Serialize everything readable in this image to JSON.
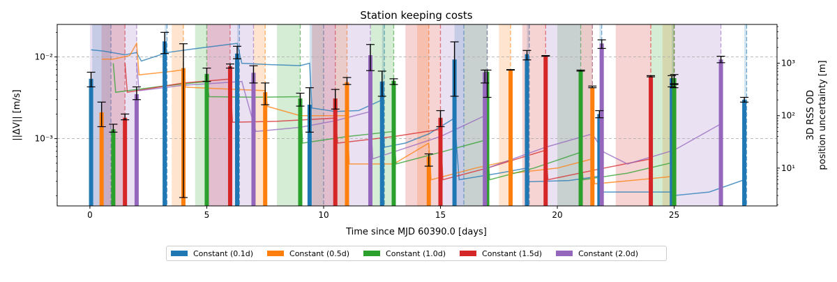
{
  "chart_data": {
    "type": "bar",
    "title": "Station keeping costs",
    "xlabel": "Time since MJD 60390.0 [days]",
    "ylabel_left": "||ΔV|| [m/s]",
    "ylabel_right_line1": "3D RSS OD",
    "ylabel_right_line2": "position uncertainty [m]",
    "x_range": [
      -1.4,
      29.4
    ],
    "y_left_range": [
      0.00015,
      0.025
    ],
    "y_left_scale": "log",
    "y_right_range": [
      1.9,
      5500
    ],
    "y_right_scale": "log",
    "x_ticks": [
      0,
      5,
      10,
      15,
      20,
      25
    ],
    "y_left_ticks": [
      {
        "v": 0.001,
        "label": "10⁻³"
      },
      {
        "v": 0.01,
        "label": "10⁻²"
      }
    ],
    "y_right_ticks": [
      {
        "v": 10,
        "label": "10¹"
      },
      {
        "v": 100,
        "label": "10²"
      },
      {
        "v": 1000,
        "label": "10³"
      }
    ],
    "grid": "horizontal dashed",
    "legend_position": "bottom-center",
    "series": [
      {
        "name": "Constant (0.1d)",
        "color": "#1f77b4",
        "bars": [
          [
            0.05,
            0.0054,
            0.0043,
            0.0065
          ],
          [
            3.2,
            0.0155,
            0.011,
            0.02
          ],
          [
            6.3,
            0.011,
            0.0095,
            0.0135
          ],
          [
            9.4,
            0.0026,
            0.0012,
            0.0042
          ],
          [
            12.5,
            0.005,
            0.0033,
            0.0067
          ],
          [
            15.6,
            0.0093,
            0.0033,
            0.0153
          ],
          [
            18.7,
            0.0108,
            0.0092,
            0.012
          ],
          [
            21.8,
            0.002,
            0.0018,
            0.0022
          ],
          [
            24.9,
            0.0055,
            0.0043,
            0.0059
          ],
          [
            28.0,
            0.003,
            0.0028,
            0.0032
          ]
        ],
        "windows": [
          [
            0.1,
            0.9
          ],
          [
            3.2,
            3.3
          ],
          [
            6.3,
            6.4
          ],
          [
            9.4,
            10.0
          ],
          [
            12.5,
            12.6
          ],
          [
            15.6,
            16.0
          ],
          [
            18.7,
            18.8
          ],
          [
            21.8,
            21.9
          ],
          [
            24.9,
            25.0
          ],
          [
            28.0,
            28.1
          ]
        ],
        "od_curve": [
          [
            0.05,
            1800
          ],
          [
            0.6,
            1700
          ],
          [
            1.5,
            1450
          ],
          [
            2.0,
            1600
          ],
          [
            2.2,
            1100
          ],
          [
            3.3,
            1600
          ],
          [
            4.5,
            1900
          ],
          [
            6.3,
            2400
          ],
          [
            6.5,
            1000
          ],
          [
            7.5,
            950
          ],
          [
            9.0,
            900
          ],
          [
            9.4,
            1000
          ],
          [
            9.5,
            140
          ],
          [
            10.5,
            120
          ],
          [
            11.5,
            125
          ],
          [
            12.5,
            200
          ],
          [
            12.6,
            25
          ],
          [
            13.5,
            30
          ],
          [
            14.5,
            45
          ],
          [
            15.6,
            90
          ],
          [
            15.8,
            6
          ],
          [
            17.5,
            8
          ],
          [
            18.7,
            10
          ],
          [
            18.8,
            5.5
          ],
          [
            20.5,
            5.8
          ],
          [
            21.8,
            7
          ],
          [
            21.9,
            3.5
          ],
          [
            23.5,
            3.5
          ],
          [
            24.9,
            3.5
          ],
          [
            25.0,
            3.0
          ],
          [
            26.5,
            3.5
          ],
          [
            28.0,
            6
          ]
        ]
      },
      {
        "name": "Constant (0.5d)",
        "color": "#ff7f0e",
        "bars": [
          [
            0.5,
            0.0021,
            0.0014,
            0.0028
          ],
          [
            4.0,
            0.0073,
            0.00019,
            0.0145
          ],
          [
            7.5,
            0.0037,
            0.0026,
            0.0048
          ],
          [
            11.0,
            0.0049,
            0.0046,
            0.0056
          ],
          [
            14.5,
            0.0006,
            0.00046,
            0.00065
          ],
          [
            18.0,
            0.0069,
            0.0069,
            0.007
          ],
          [
            21.5,
            0.0042,
            0.0042,
            0.0044
          ],
          [
            25.0,
            0.0044,
            0.0042,
            0.0047
          ]
        ],
        "windows": [
          [
            3.5,
            4.0
          ],
          [
            7.0,
            7.5
          ],
          [
            10.5,
            11.0
          ],
          [
            14.0,
            14.5
          ],
          [
            17.5,
            18.0
          ],
          [
            21.0,
            21.5
          ],
          [
            24.5,
            25.0
          ]
        ],
        "od_curve": [
          [
            0.5,
            1200
          ],
          [
            1.0,
            1200
          ],
          [
            1.7,
            1400
          ],
          [
            2.0,
            2400
          ],
          [
            2.1,
            600
          ],
          [
            3.5,
            700
          ],
          [
            4.0,
            750
          ],
          [
            4.1,
            350
          ],
          [
            6.0,
            320
          ],
          [
            7.5,
            300
          ],
          [
            7.6,
            150
          ],
          [
            9.0,
            100
          ],
          [
            11.0,
            100
          ],
          [
            11.1,
            12
          ],
          [
            13.0,
            12
          ],
          [
            14.5,
            30
          ],
          [
            14.6,
            6
          ],
          [
            16.5,
            10
          ],
          [
            18.0,
            14
          ],
          [
            18.1,
            8
          ],
          [
            20.0,
            10
          ],
          [
            21.5,
            15
          ],
          [
            21.6,
            5
          ],
          [
            23.5,
            6
          ],
          [
            25.0,
            7
          ]
        ]
      },
      {
        "name": "Constant (1.0d)",
        "color": "#2ca02c",
        "bars": [
          [
            1.0,
            0.0013,
            0.0012,
            0.0015
          ],
          [
            5.0,
            0.0062,
            0.005,
            0.0073
          ],
          [
            9.0,
            0.0031,
            0.0025,
            0.0036
          ],
          [
            13.0,
            0.0051,
            0.0046,
            0.0054
          ],
          [
            17.0,
            0.0066,
            0.0032,
            0.0069
          ],
          [
            21.0,
            0.0068,
            0.0067,
            0.0069
          ],
          [
            25.0,
            0.0055,
            0.0046,
            0.0061
          ]
        ],
        "windows": [
          [
            4.5,
            5.0
          ],
          [
            8.0,
            9.0
          ],
          [
            12.0,
            13.0
          ],
          [
            16.0,
            17.0
          ],
          [
            20.0,
            21.0
          ],
          [
            24.0,
            25.0
          ]
        ],
        "od_curve": [
          [
            1.0,
            1000
          ],
          [
            1.1,
            280
          ],
          [
            3.0,
            360
          ],
          [
            5.0,
            450
          ],
          [
            5.1,
            230
          ],
          [
            7.0,
            225
          ],
          [
            9.0,
            230
          ],
          [
            9.1,
            30
          ],
          [
            11.0,
            40
          ],
          [
            13.0,
            50
          ],
          [
            13.1,
            12
          ],
          [
            15.0,
            20
          ],
          [
            17.0,
            35
          ],
          [
            17.1,
            6
          ],
          [
            19.0,
            10
          ],
          [
            21.0,
            20
          ],
          [
            21.1,
            6
          ],
          [
            23.0,
            8
          ],
          [
            25.0,
            13
          ]
        ]
      },
      {
        "name": "Constant (1.5d)",
        "color": "#d62728",
        "bars": [
          [
            1.5,
            0.0018,
            0.0017,
            0.002
          ],
          [
            6.0,
            0.0077,
            0.0073,
            0.0082
          ],
          [
            10.5,
            0.0031,
            0.0023,
            0.004
          ],
          [
            15.0,
            0.0018,
            0.0014,
            0.0022
          ],
          [
            19.5,
            0.0103,
            0.0102,
            0.0104
          ],
          [
            24.0,
            0.0058,
            0.0057,
            0.0059
          ]
        ],
        "windows": [
          [
            0.5,
            1.5
          ],
          [
            5.0,
            6.0
          ],
          [
            9.5,
            10.5
          ],
          [
            13.5,
            15.0
          ],
          [
            18.5,
            19.5
          ],
          [
            22.5,
            24.0
          ]
        ],
        "od_curve": [
          [
            1.5,
            1000
          ],
          [
            1.6,
            280
          ],
          [
            4.0,
            420
          ],
          [
            6.0,
            500
          ],
          [
            6.1,
            75
          ],
          [
            8.0,
            78
          ],
          [
            10.5,
            90
          ],
          [
            10.6,
            30
          ],
          [
            13.0,
            40
          ],
          [
            15.0,
            55
          ],
          [
            15.1,
            6
          ],
          [
            17.0,
            10
          ],
          [
            19.5,
            22
          ],
          [
            19.6,
            6
          ],
          [
            22.0,
            10
          ],
          [
            24.0,
            15
          ]
        ]
      },
      {
        "name": "Constant (2.0d)",
        "color": "#9467bd",
        "bars": [
          [
            2.0,
            0.0035,
            0.003,
            0.0043
          ],
          [
            7.0,
            0.0064,
            0.0048,
            0.0078
          ],
          [
            12.0,
            0.0105,
            0.0068,
            0.0142
          ],
          [
            16.9,
            0.0065,
            0.0048,
            0.0069
          ],
          [
            21.9,
            0.0146,
            0.0127,
            0.0162
          ],
          [
            27.0,
            0.0093,
            0.0085,
            0.0102
          ]
        ],
        "windows": [
          [
            0.0,
            2.0
          ],
          [
            5.0,
            7.0
          ],
          [
            10.0,
            12.0
          ],
          [
            15.0,
            17.0
          ],
          [
            19.5,
            21.5
          ],
          [
            25.0,
            27.0
          ]
        ],
        "od_curve": [
          [
            2.0,
            1000
          ],
          [
            2.1,
            300
          ],
          [
            4.0,
            380
          ],
          [
            6.5,
            450
          ],
          [
            7.1,
            50
          ],
          [
            9.0,
            60
          ],
          [
            10.5,
            80
          ],
          [
            12.0,
            120
          ],
          [
            12.1,
            15
          ],
          [
            15.0,
            40
          ],
          [
            16.9,
            100
          ],
          [
            17.0,
            10
          ],
          [
            19.5,
            25
          ],
          [
            21.5,
            45
          ],
          [
            22.0,
            20
          ],
          [
            23.0,
            12
          ],
          [
            25.0,
            22
          ],
          [
            27.0,
            70
          ]
        ]
      }
    ],
    "legend": [
      "Constant (0.1d)",
      "Constant (0.5d)",
      "Constant (1.0d)",
      "Constant (1.5d)",
      "Constant (2.0d)"
    ]
  }
}
